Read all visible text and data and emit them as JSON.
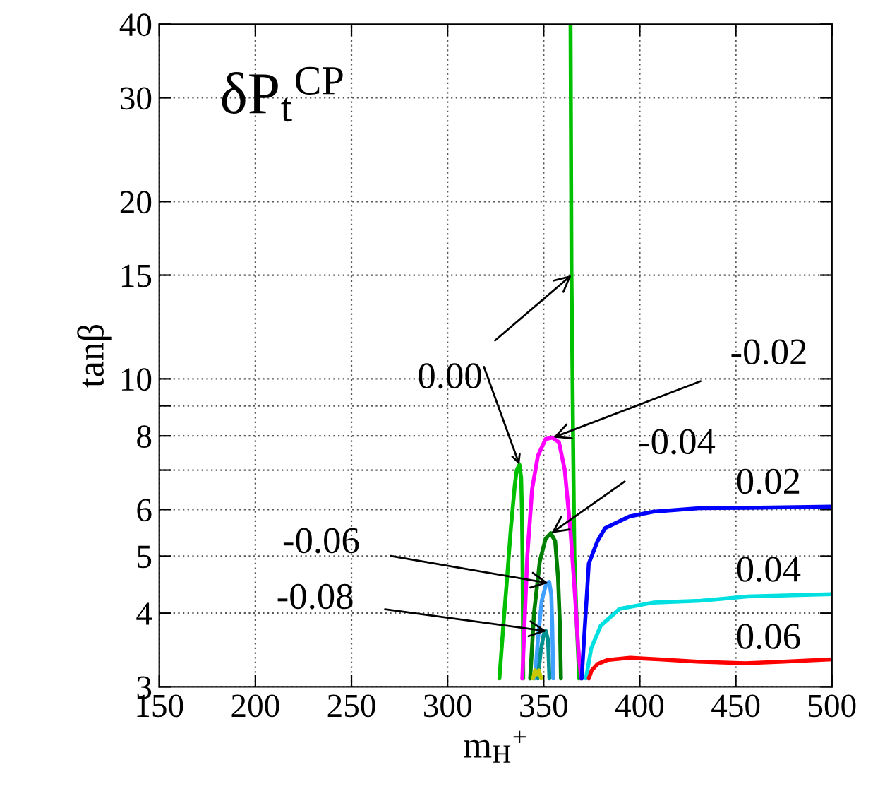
{
  "chart_data": {
    "type": "line",
    "title": "δP$_{t}$$^{CP}$",
    "xlabel": "m$_{H}$$^{+}$",
    "ylabel": "tanβ",
    "log": "y",
    "grid": true,
    "line_style": "solid",
    "marker": "none",
    "xlim": [
      150,
      500
    ],
    "xticks": [
      150,
      200,
      250,
      300,
      350,
      400,
      450,
      500
    ],
    "ylim": [
      3,
      40
    ],
    "yticks": [
      3,
      4,
      5,
      6,
      {
        "value": 7,
        "label": null
      },
      8,
      {
        "value": 9,
        "label": null
      },
      10,
      15,
      20,
      30,
      40
    ],
    "series": [
      {
        "color": "#00c000",
        "x": [
          327,
          329,
          331,
          333,
          335,
          336,
          337.4,
          338.3,
          338.7,
          339,
          339.2,
          339.4,
          350,
          364,
          364.5,
          365.3,
          366,
          367,
          368.5
        ],
        "values": [
          3.1,
          3.8,
          4.6,
          5.6,
          6.6,
          7.0,
          7.15,
          6.8,
          6.0,
          5.0,
          4.0,
          3.1,
          null,
          40,
          15,
          8,
          5,
          4,
          3.1
        ]
      },
      {
        "color": "#ff00ff",
        "x": [
          338.9,
          341.5,
          344,
          347,
          351,
          354.5,
          358,
          361,
          364,
          366.5,
          368,
          369.5
        ],
        "values": [
          3.1,
          5.0,
          6.5,
          7.4,
          7.9,
          7.95,
          7.8,
          7.0,
          5.5,
          4.2,
          3.5,
          3.1
        ]
      },
      {
        "color": "#008000",
        "x": [
          343,
          345,
          348,
          351,
          353.7,
          356,
          357.5,
          358.5,
          359
        ],
        "values": [
          3.1,
          4.0,
          4.9,
          5.35,
          5.47,
          5.3,
          4.6,
          3.8,
          3.1
        ]
      },
      {
        "color": "#3fa0ff",
        "x": [
          345.5,
          347,
          349,
          351,
          352.9,
          354,
          354.5,
          355
        ],
        "values": [
          3.1,
          3.6,
          4.2,
          4.45,
          4.52,
          4.3,
          3.8,
          3.1
        ]
      },
      {
        "color": "#009090",
        "x": [
          347,
          348.5,
          350,
          351.2,
          352.3,
          353
        ],
        "values": [
          3.1,
          3.45,
          3.68,
          3.73,
          3.6,
          3.1
        ]
      },
      {
        "color": "#c8c800",
        "x": [
          344.5,
          345.5,
          346.5,
          347.5,
          348.7
        ],
        "values": [
          3.1,
          3.2,
          3.15,
          3.2,
          3.1
        ]
      },
      {
        "color": "#0000ff",
        "x": [
          369.8,
          371,
          373.5,
          378,
          382,
          394.6,
          407,
          431,
          456,
          500
        ],
        "values": [
          3.1,
          3.6,
          4.86,
          5.3,
          5.58,
          5.84,
          5.95,
          6.03,
          6.04,
          6.07
        ]
      },
      {
        "color": "#00e0e0",
        "x": [
          372,
          374.8,
          379.7,
          389.6,
          407,
          431.7,
          456,
          500
        ],
        "values": [
          3.1,
          3.49,
          3.81,
          4.07,
          4.17,
          4.2,
          4.27,
          4.31
        ]
      },
      {
        "color": "#ff0000",
        "x": [
          373.5,
          375,
          378,
          383,
          395,
          410,
          430,
          455,
          475,
          500
        ],
        "values": [
          3.1,
          3.2,
          3.28,
          3.33,
          3.36,
          3.34,
          3.31,
          3.29,
          3.31,
          3.34
        ]
      }
    ],
    "annotations": [
      {
        "text": "0.00",
        "x": 364.5,
        "y": 15
      },
      {
        "text": "-0.02",
        "x": 355,
        "y": 7.95
      },
      {
        "text": "-0.04",
        "x": 354,
        "y": 5.47
      },
      {
        "text": "-0.06",
        "x": 352.5,
        "y": 4.5
      },
      {
        "text": "-0.08",
        "x": 351.5,
        "y": 3.73
      },
      {
        "text": "0.02",
        "x": 467,
        "y": 6.05
      },
      {
        "text": "0.04",
        "x": 467,
        "y": 4.29
      },
      {
        "text": "0.06",
        "x": 467,
        "y": 3.3
      }
    ]
  }
}
